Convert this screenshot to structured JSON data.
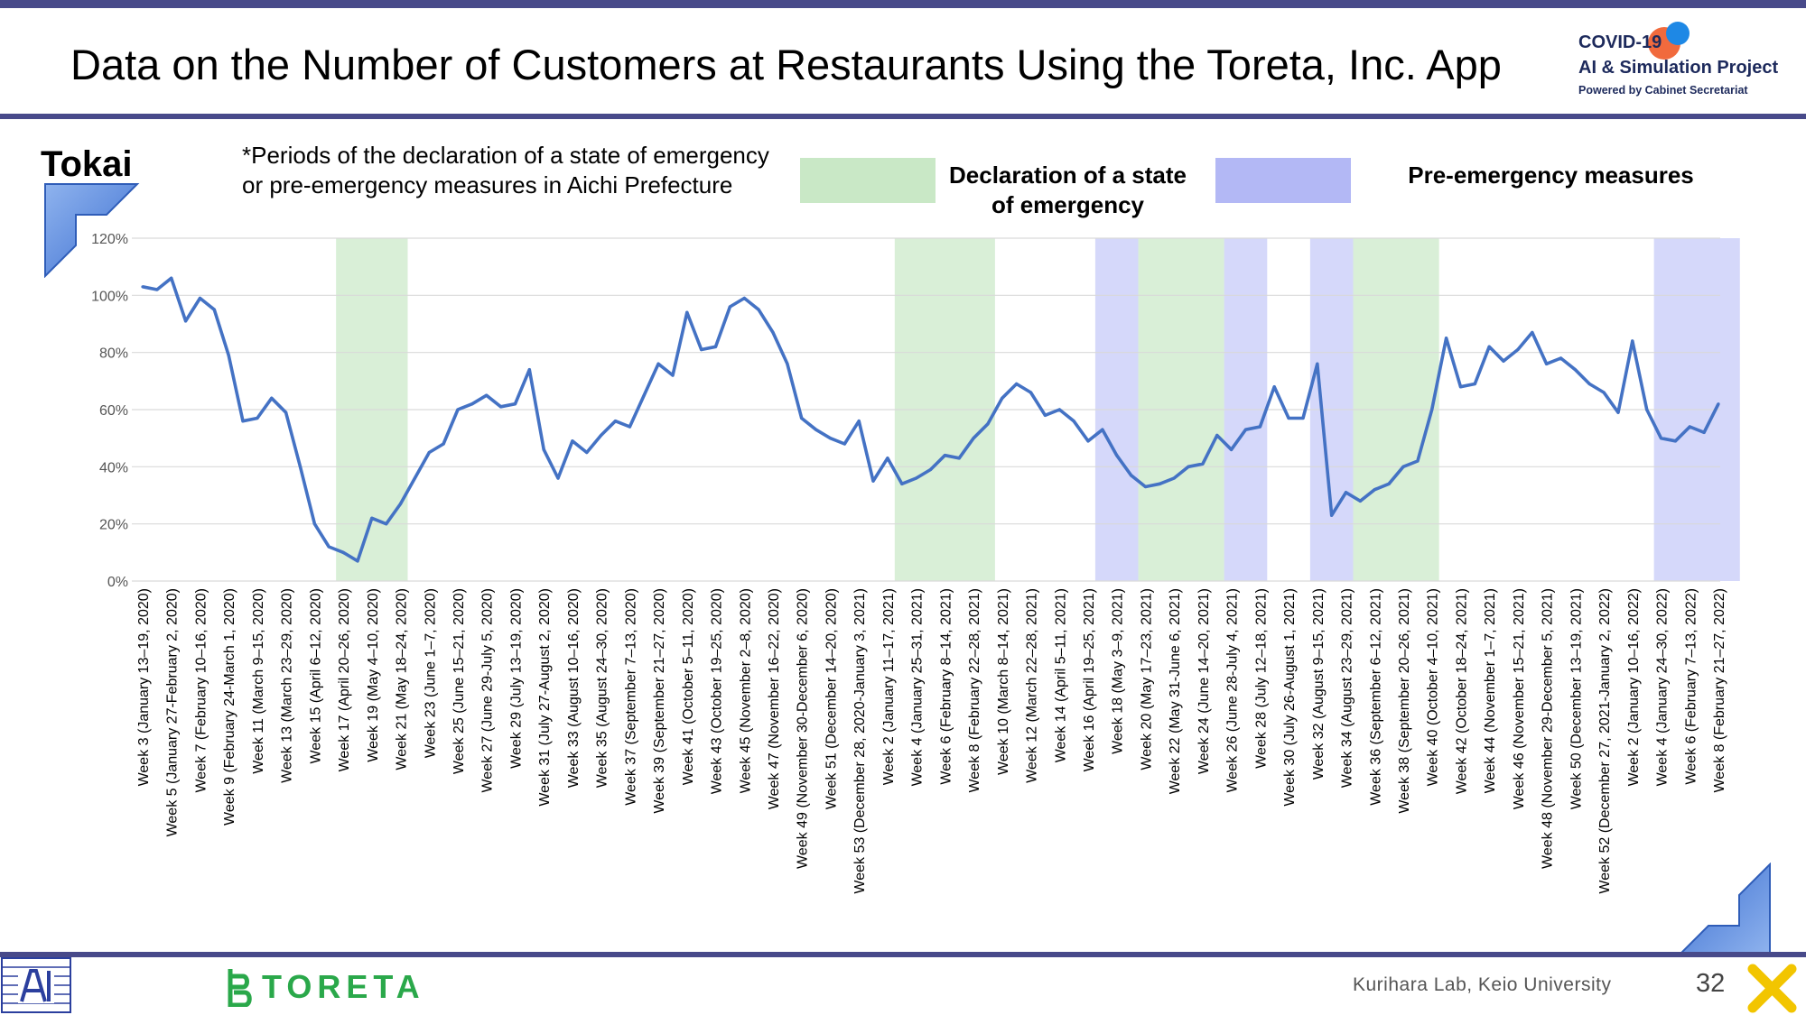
{
  "header": {
    "title": "Data on the Number of Customers at Restaurants Using the Toreta, Inc. App",
    "logo": {
      "line1": "COVID-19",
      "line2": "AI & Simulation Project",
      "line3": "Powered by Cabinet Secretariat"
    }
  },
  "region_label": "Tokai",
  "note": "*Periods of the declaration of a state of emergency or pre-emergency measures in Aichi Prefecture",
  "legend": {
    "emergency": "Declaration of a state of emergency",
    "pre_emergency": "Pre-emergency measures"
  },
  "colors": {
    "line": "#4472c4",
    "emergency": "#c9e8c6",
    "pre_emergency": "#b3b8f5",
    "accent_bar": "#484a8a"
  },
  "footer": {
    "brand": "TORETA",
    "credit": "Kurihara Lab, Keio University",
    "page_number": "32"
  },
  "chart_data": {
    "type": "line",
    "title": "",
    "xlabel": "",
    "ylabel": "",
    "ylim": [
      0,
      1.2
    ],
    "yticks": [
      "0%",
      "20%",
      "40%",
      "60%",
      "80%",
      "100%",
      "120%"
    ],
    "grid": true,
    "tick_labels": [
      "Week 3 (January 13–19, 2020)",
      "Week 5 (January 27-February 2, 2020)",
      "Week 7 (February 10–16, 2020)",
      "Week 9 (February 24-March 1, 2020)",
      "Week 11 (March 9–15, 2020)",
      "Week 13 (March 23–29, 2020)",
      "Week 15 (April 6–12, 2020)",
      "Week 17 (April 20–26, 2020)",
      "Week 19 (May 4–10, 2020)",
      "Week 21 (May 18–24, 2020)",
      "Week 23 (June 1–7, 2020)",
      "Week 25 (June 15–21, 2020)",
      "Week 27 (June 29-July 5, 2020)",
      "Week 29 (July 13–19, 2020)",
      "Week 31 (July 27-August 2, 2020)",
      "Week 33 (August 10–16, 2020)",
      "Week 35 (August 24–30, 2020)",
      "Week 37 (September 7–13, 2020)",
      "Week 39 (September 21–27, 2020)",
      "Week 41 (October 5–11, 2020)",
      "Week 43 (October 19–25, 2020)",
      "Week 45 (November 2–8, 2020)",
      "Week 47 (November 16–22, 2020)",
      "Week 49 (November 30-December 6, 2020)",
      "Week 51 (December 14–20, 2020)",
      "Week 53 (December 28, 2020-January 3, 2021)",
      "Week 2 (January 11–17, 2021)",
      "Week 4 (January 25–31, 2021)",
      "Week 6 (February 8–14, 2021)",
      "Week 8 (February 22–28, 2021)",
      "Week 10 (March 8–14, 2021)",
      "Week 12 (March 22–28, 2021)",
      "Week 14 (April 5–11, 2021)",
      "Week 16 (April 19–25, 2021)",
      "Week 18 (May 3–9, 2021)",
      "Week 20 (May 17–23, 2021)",
      "Week 22 (May 31-June 6, 2021)",
      "Week 24 (June 14–20, 2021)",
      "Week 26 (June 28-July 4, 2021)",
      "Week 28 (July 12–18, 2021)",
      "Week 30 (July 26-August 1, 2021)",
      "Week 32 (August 9–15, 2021)",
      "Week 34 (August 23–29, 2021)",
      "Week 36 (September 6–12, 2021)",
      "Week 38 (September 20–26, 2021)",
      "Week 40 (October 4–10, 2021)",
      "Week 42 (October 18–24, 2021)",
      "Week 44 (November 1–7, 2021)",
      "Week 46 (November 15–21, 2021)",
      "Week 48 (November 29-December 5, 2021)",
      "Week 50 (December 13–19, 2021)",
      "Week 52 (December 27, 2021-January 2, 2022)",
      "Week 2 (January 10–16, 2022)",
      "Week 4 (January 24–30, 2022)",
      "Week 6 (February 7–13, 2022)",
      "Week 8 (February 21–27, 2022)"
    ],
    "series": [
      {
        "values": [
          1.03,
          1.02,
          1.06,
          0.91,
          0.99,
          0.95,
          0.79,
          0.56,
          0.57,
          0.64,
          0.59,
          0.4,
          0.2,
          0.12,
          0.1,
          0.07,
          0.22,
          0.2,
          0.27,
          0.36,
          0.45,
          0.48,
          0.6,
          0.62,
          0.65,
          0.61,
          0.62,
          0.74,
          0.46,
          0.36,
          0.49,
          0.45,
          0.51,
          0.56,
          0.54,
          0.65,
          0.76,
          0.72,
          0.94,
          0.81,
          0.82,
          0.96,
          0.99,
          0.95,
          0.87,
          0.76,
          0.57,
          0.53,
          0.5,
          0.48,
          0.56,
          0.35,
          0.43,
          0.34,
          0.36,
          0.39,
          0.44,
          0.43,
          0.5,
          0.55,
          0.64,
          0.69,
          0.66,
          0.58,
          0.6,
          0.56,
          0.49,
          0.53,
          0.44,
          0.37,
          0.33,
          0.34,
          0.36,
          0.4,
          0.41,
          0.51,
          0.46,
          0.53,
          0.54,
          0.68,
          0.57,
          0.57,
          0.76,
          0.23,
          0.31,
          0.28,
          0.32,
          0.34,
          0.4,
          0.42,
          0.6,
          0.85,
          0.68,
          0.69,
          0.82,
          0.77,
          0.81,
          0.87,
          0.76,
          0.78,
          0.74,
          0.69,
          0.66,
          0.59,
          0.84,
          0.6,
          0.5,
          0.49,
          0.54,
          0.52,
          0.62
        ]
      }
    ],
    "shaded_periods": [
      {
        "kind": "emergency",
        "from": 13.5,
        "to": 18.5
      },
      {
        "kind": "emergency",
        "from": 52.5,
        "to": 59.5
      },
      {
        "kind": "pre_emergency",
        "from": 66.5,
        "to": 69.5
      },
      {
        "kind": "emergency",
        "from": 69.5,
        "to": 75.5
      },
      {
        "kind": "pre_emergency",
        "from": 75.5,
        "to": 78.5
      },
      {
        "kind": "pre_emergency",
        "from": 81.5,
        "to": 84.5
      },
      {
        "kind": "emergency",
        "from": 84.5,
        "to": 90.5
      },
      {
        "kind": "pre_emergency",
        "from": 105.5,
        "to": 111.5
      }
    ]
  }
}
